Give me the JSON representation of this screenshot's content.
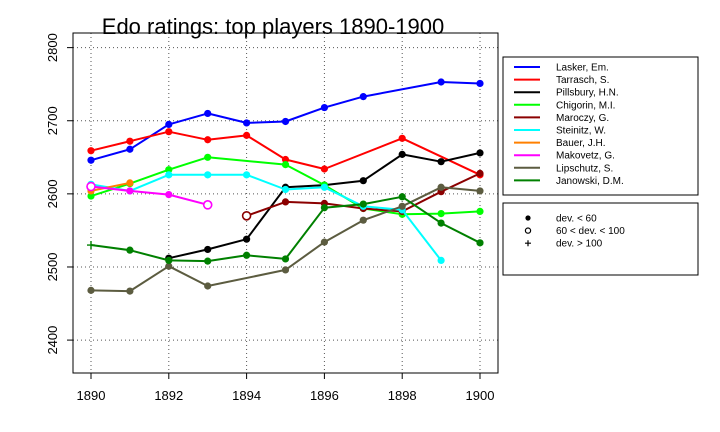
{
  "chart_data": {
    "type": "line",
    "title": "Edo ratings: top players 1890-1900",
    "xlabel": "",
    "ylabel": "",
    "xlim": [
      1890,
      1900
    ],
    "ylim": [
      2355,
      2820
    ],
    "x_ticks": [
      1890,
      1892,
      1894,
      1896,
      1898,
      1900
    ],
    "y_ticks": [
      2400,
      2500,
      2600,
      2700,
      2800
    ],
    "grid": true,
    "legend_position": "right",
    "series": [
      {
        "name": "Lasker, Em.",
        "color": "#0000ff",
        "points": [
          [
            1890,
            2646,
            "d"
          ],
          [
            1891,
            2661,
            "d"
          ],
          [
            1892,
            2695,
            "d"
          ],
          [
            1893,
            2710,
            "d"
          ],
          [
            1894,
            2697,
            "d"
          ],
          [
            1895,
            2699,
            "d"
          ],
          [
            1896,
            2718,
            "d"
          ],
          [
            1897,
            2733,
            "d"
          ],
          [
            1899,
            2753,
            "d"
          ],
          [
            1900,
            2751,
            "d"
          ]
        ]
      },
      {
        "name": "Tarrasch, S.",
        "color": "#ff0000",
        "points": [
          [
            1890,
            2659,
            "d"
          ],
          [
            1891,
            2672,
            "d"
          ],
          [
            1892,
            2685,
            "d"
          ],
          [
            1893,
            2674,
            "d"
          ],
          [
            1894,
            2680,
            "d"
          ],
          [
            1895,
            2647,
            "d"
          ],
          [
            1896,
            2634,
            "d"
          ],
          [
            1898,
            2676,
            "d"
          ],
          [
            1900,
            2626,
            "d"
          ]
        ]
      },
      {
        "name": "Pillsbury, H.N.",
        "color": "#000000",
        "points": [
          [
            1892,
            2512,
            "d"
          ],
          [
            1893,
            2524,
            "d"
          ],
          [
            1894,
            2538,
            "d"
          ],
          [
            1895,
            2609,
            "d"
          ],
          [
            1896,
            2612,
            "d"
          ],
          [
            1897,
            2618,
            "d"
          ],
          [
            1898,
            2654,
            "d"
          ],
          [
            1899,
            2644,
            "d"
          ],
          [
            1900,
            2656,
            "d"
          ]
        ]
      },
      {
        "name": "Chigorin, M.I.",
        "color": "#00ff00",
        "points": [
          [
            1890,
            2597,
            "d"
          ],
          [
            1891,
            2614,
            "d"
          ],
          [
            1892,
            2633,
            "d"
          ],
          [
            1893,
            2650,
            "d"
          ],
          [
            1895,
            2640,
            "d"
          ],
          [
            1896,
            2612,
            "d"
          ],
          [
            1897,
            2580,
            "d"
          ],
          [
            1898,
            2572,
            "d"
          ],
          [
            1899,
            2573,
            "d"
          ],
          [
            1900,
            2576,
            "d"
          ]
        ]
      },
      {
        "name": "Maroczy, G.",
        "color": "#8b0000",
        "points": [
          [
            1894,
            2570,
            "m"
          ],
          [
            1895,
            2589,
            "d"
          ],
          [
            1896,
            2587,
            "d"
          ],
          [
            1897,
            2580,
            "d"
          ],
          [
            1898,
            2576,
            "d"
          ],
          [
            1899,
            2603,
            "d"
          ],
          [
            1900,
            2628,
            "d"
          ]
        ]
      },
      {
        "name": "Steinitz, W.",
        "color": "#00ffff",
        "points": [
          [
            1890,
            2613,
            "d"
          ],
          [
            1891,
            2604,
            "d"
          ],
          [
            1892,
            2626,
            "d"
          ],
          [
            1893,
            2626,
            "d"
          ],
          [
            1894,
            2626,
            "d"
          ],
          [
            1895,
            2606,
            "d"
          ],
          [
            1896,
            2609,
            "d"
          ],
          [
            1897,
            2583,
            "d"
          ],
          [
            1898,
            2578,
            "d"
          ],
          [
            1899,
            2509,
            "d"
          ]
        ]
      },
      {
        "name": "Bauer, J.H.",
        "color": "#ff8000",
        "points": [
          [
            1890,
            2604,
            "d"
          ],
          [
            1891,
            2615,
            "d"
          ]
        ]
      },
      {
        "name": "Makovetz, G.",
        "color": "#ff00ff",
        "points": [
          [
            1890,
            2610,
            "m"
          ],
          [
            1891,
            2604,
            "d"
          ],
          [
            1892,
            2599,
            "d"
          ],
          [
            1893,
            2585,
            "m"
          ]
        ]
      },
      {
        "name": "Lipschutz, S.",
        "color": "#5c5c40",
        "points": [
          [
            1890,
            2468,
            "d"
          ],
          [
            1891,
            2467,
            "d"
          ],
          [
            1892,
            2501,
            "d"
          ],
          [
            1893,
            2474,
            "d"
          ],
          [
            1895,
            2496,
            "d"
          ],
          [
            1896,
            2534,
            "d"
          ],
          [
            1897,
            2564,
            "d"
          ],
          [
            1898,
            2583,
            "d"
          ],
          [
            1899,
            2609,
            "d"
          ],
          [
            1900,
            2604,
            "d"
          ]
        ]
      },
      {
        "name": "Janowski, D.M.",
        "color": "#008000",
        "points": [
          [
            1890,
            2530,
            "n"
          ],
          [
            1891,
            2523,
            "d"
          ],
          [
            1892,
            2509,
            "d"
          ],
          [
            1893,
            2508,
            "d"
          ],
          [
            1894,
            2516,
            "d"
          ],
          [
            1895,
            2511,
            "d"
          ],
          [
            1896,
            2581,
            "d"
          ],
          [
            1897,
            2586,
            "d"
          ],
          [
            1898,
            2596,
            "d"
          ],
          [
            1899,
            2560,
            "d"
          ],
          [
            1900,
            2533,
            "d"
          ]
        ]
      }
    ],
    "marker_legend": [
      {
        "symbol": "dot",
        "label": "dev. < 60"
      },
      {
        "symbol": "circle",
        "label": "60 < dev. < 100"
      },
      {
        "symbol": "plus",
        "label": "dev. > 100"
      }
    ]
  }
}
